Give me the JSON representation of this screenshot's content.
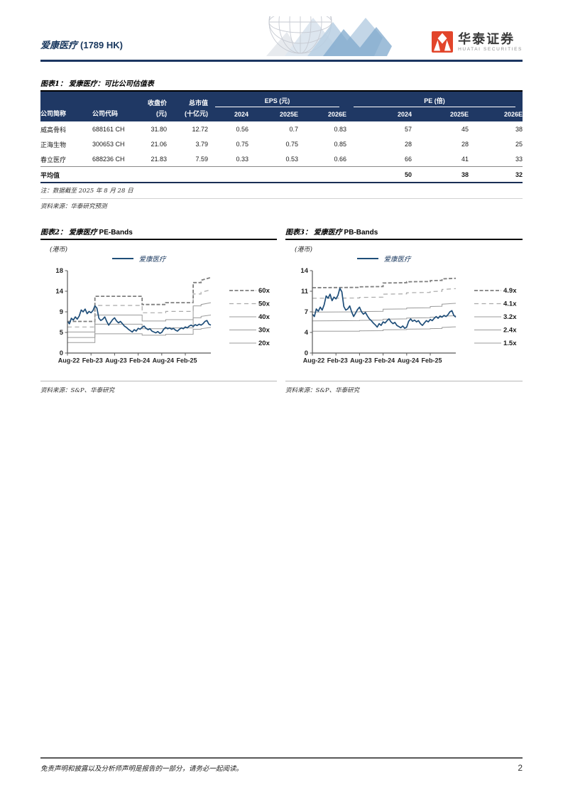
{
  "palette": {
    "navy_rule": "#1B3561",
    "table_header_bg": "#1F3864",
    "price_line": "#1F4E79",
    "brand_red": "#E2452B",
    "band_dash_dark": "#7f7f7f",
    "band_dash_light": "#a9a9a9",
    "band_solid": "#9b9b9b"
  },
  "header": {
    "title_cn": "爱康医疗",
    "title_code": "(1789 HK)",
    "brand_cn": "华泰证券",
    "brand_en": "HUATAI SECURITIES",
    "deco_icon": "globe-with-ribbons"
  },
  "figure1": {
    "fig_label": "图表1：",
    "title": "爱康医疗：可比公司估值表",
    "table": {
      "col1": "公司简称",
      "col2": "公司代码",
      "price_label": "收盘价",
      "price_unit": "(元)",
      "mcap_label": "总市值",
      "mcap_unit": "(十亿元)",
      "eps_group": "EPS (元)",
      "pe_group": "PE (倍)",
      "years": [
        "2024",
        "2025E",
        "2026E"
      ],
      "rows": [
        {
          "name": "威高骨科",
          "code": "688161 CH",
          "price": "31.80",
          "mcap": "12.72",
          "eps": [
            "0.56",
            "0.7",
            "0.83"
          ],
          "pe": [
            "57",
            "45",
            "38"
          ]
        },
        {
          "name": "正海生物",
          "code": "300653 CH",
          "price": "21.06",
          "mcap": "3.79",
          "eps": [
            "0.75",
            "0.75",
            "0.85"
          ],
          "pe": [
            "28",
            "28",
            "25"
          ]
        },
        {
          "name": "春立医疗",
          "code": "688236 CH",
          "price": "21.83",
          "mcap": "7.59",
          "eps": [
            "0.33",
            "0.53",
            "0.66"
          ],
          "pe": [
            "66",
            "41",
            "33"
          ]
        }
      ],
      "avg": {
        "label": "平均值",
        "pe": [
          "50",
          "38",
          "32"
        ]
      }
    },
    "note": "注：数据截至 2025 年 8 月 28 日",
    "source": "资料来源：华泰研究预测"
  },
  "chart_data": [
    {
      "id": "pe-bands",
      "type": "line",
      "fig_label": "图表2：",
      "title_cn": "爱康医疗",
      "title_en": "PE-Bands",
      "unit": "(港币)",
      "series_name": "爱康医疗",
      "source": "资料来源：S&P、华泰研究",
      "legend_position": "right",
      "grid": false,
      "xlim": [
        0,
        36.5
      ],
      "ylim": [
        0,
        18
      ],
      "yticks": [
        {
          "v": 0,
          "label": "0"
        },
        {
          "v": 4.5,
          "label": "5"
        },
        {
          "v": 9,
          "label": "9"
        },
        {
          "v": 13.5,
          "label": "14"
        },
        {
          "v": 18,
          "label": "18"
        }
      ],
      "xticks": [
        {
          "v": 0,
          "label": "Aug-22"
        },
        {
          "v": 6,
          "label": "Feb-23"
        },
        {
          "v": 12,
          "label": "Aug-23"
        },
        {
          "v": 18,
          "label": "Feb-24"
        },
        {
          "v": 24,
          "label": "Aug-24"
        },
        {
          "v": 30,
          "label": "Feb-25"
        }
      ],
      "bands": [
        {
          "label": "60x",
          "style": "dash-bold",
          "points": [
            [
              0,
              6.9
            ],
            [
              7,
              6.9
            ],
            [
              7,
              12.4
            ],
            [
              19,
              12.4
            ],
            [
              19,
              10.6
            ],
            [
              25,
              10.6
            ],
            [
              25,
              11.0
            ],
            [
              32,
              11.0
            ],
            [
              32,
              15.4
            ],
            [
              34,
              15.4
            ],
            [
              34,
              15.9
            ],
            [
              36.5,
              16.5
            ]
          ]
        },
        {
          "label": "50x",
          "style": "dash-light",
          "points": [
            [
              0,
              5.7
            ],
            [
              7,
              5.7
            ],
            [
              7,
              10.4
            ],
            [
              19,
              10.4
            ],
            [
              19,
              8.8
            ],
            [
              25,
              8.8
            ],
            [
              25,
              9.1
            ],
            [
              32,
              9.1
            ],
            [
              32,
              12.9
            ],
            [
              34,
              12.9
            ],
            [
              34,
              13.3
            ],
            [
              36.5,
              13.8
            ]
          ]
        },
        {
          "label": "40x",
          "style": "solid",
          "points": [
            [
              0,
              4.6
            ],
            [
              7,
              4.6
            ],
            [
              7,
              8.3
            ],
            [
              19,
              8.3
            ],
            [
              19,
              7.0
            ],
            [
              25,
              7.0
            ],
            [
              25,
              7.3
            ],
            [
              32,
              7.3
            ],
            [
              32,
              10.3
            ],
            [
              34,
              10.3
            ],
            [
              34,
              10.6
            ],
            [
              36.5,
              11.0
            ]
          ]
        },
        {
          "label": "30x",
          "style": "solid",
          "points": [
            [
              0,
              3.4
            ],
            [
              7,
              3.4
            ],
            [
              7,
              6.3
            ],
            [
              19,
              6.3
            ],
            [
              19,
              5.3
            ],
            [
              25,
              5.3
            ],
            [
              25,
              5.5
            ],
            [
              32,
              5.5
            ],
            [
              32,
              7.7
            ],
            [
              34,
              7.7
            ],
            [
              34,
              8.0
            ],
            [
              36.5,
              8.3
            ]
          ]
        },
        {
          "label": "20x",
          "style": "solid",
          "points": [
            [
              0,
              2.3
            ],
            [
              7,
              2.3
            ],
            [
              7,
              4.2
            ],
            [
              19,
              4.2
            ],
            [
              19,
              3.9
            ],
            [
              25,
              3.9
            ],
            [
              25,
              4.1
            ],
            [
              32,
              4.1
            ],
            [
              32,
              5.2
            ],
            [
              34,
              5.2
            ],
            [
              34,
              5.3
            ],
            [
              36.5,
              5.6
            ]
          ]
        }
      ],
      "price": {
        "x0": 0,
        "x_step": 0.5,
        "values": [
          6.9,
          6.4,
          7.6,
          7.2,
          7.9,
          7.4,
          8.1,
          9.4,
          9.0,
          9.6,
          8.6,
          9.1,
          8.8,
          9.3,
          10.3,
          9.8,
          7.6,
          7.1,
          7.4,
          7.9,
          6.9,
          6.1,
          6.7,
          7.3,
          7.7,
          7.0,
          6.6,
          6.9,
          6.4,
          5.9,
          5.6,
          5.2,
          4.9,
          4.6,
          5.1,
          4.8,
          5.4,
          5.2,
          5.6,
          5.9,
          5.4,
          5.1,
          5.3,
          4.8,
          4.6,
          4.4,
          4.7,
          4.3,
          4.5,
          5.2,
          5.6,
          5.3,
          5.5,
          5.2,
          5.4,
          5.0,
          4.8,
          5.2,
          5.5,
          5.3,
          5.7,
          5.5,
          5.9,
          6.1,
          5.8,
          6.2,
          6.0,
          6.3,
          6.1,
          6.4,
          6.9,
          7.1,
          6.3,
          6.1
        ]
      }
    },
    {
      "id": "pb-bands",
      "type": "line",
      "fig_label": "图表3：",
      "title_cn": "爱康医疗",
      "title_en": "PB-Bands",
      "unit": "(港币)",
      "series_name": "爱康医疗",
      "source": "资料来源：S&P、华泰研究",
      "legend_position": "right",
      "grid": false,
      "xlim": [
        0,
        36.5
      ],
      "ylim": [
        0,
        14
      ],
      "yticks": [
        {
          "v": 0,
          "label": "0"
        },
        {
          "v": 3.5,
          "label": "4"
        },
        {
          "v": 7,
          "label": "7"
        },
        {
          "v": 10.5,
          "label": "11"
        },
        {
          "v": 14,
          "label": "14"
        }
      ],
      "xticks": [
        {
          "v": 0,
          "label": "Aug-22"
        },
        {
          "v": 6,
          "label": "Feb-23"
        },
        {
          "v": 12,
          "label": "Aug-23"
        },
        {
          "v": 18,
          "label": "Feb-24"
        },
        {
          "v": 24,
          "label": "Aug-24"
        },
        {
          "v": 30,
          "label": "Feb-25"
        }
      ],
      "bands": [
        {
          "label": "4.9x",
          "style": "dash-bold",
          "points": [
            [
              0,
              11.1
            ],
            [
              12,
              11.15
            ],
            [
              12,
              11.25
            ],
            [
              18,
              11.3
            ],
            [
              18,
              11.9
            ],
            [
              24,
              11.95
            ],
            [
              24,
              12.1
            ],
            [
              30,
              12.15
            ],
            [
              30,
              12.3
            ],
            [
              33,
              12.35
            ],
            [
              33,
              12.6
            ],
            [
              36.5,
              12.7
            ]
          ]
        },
        {
          "label": "4.1x",
          "style": "dash-light",
          "points": [
            [
              0,
              9.3
            ],
            [
              12,
              9.35
            ],
            [
              12,
              9.45
            ],
            [
              18,
              9.5
            ],
            [
              18,
              10.0
            ],
            [
              24,
              10.05
            ],
            [
              24,
              10.25
            ],
            [
              30,
              10.3
            ],
            [
              30,
              10.45
            ],
            [
              33,
              10.5
            ],
            [
              33,
              10.8
            ],
            [
              36.5,
              10.95
            ]
          ]
        },
        {
          "label": "3.2x",
          "style": "solid",
          "points": [
            [
              0,
              6.95
            ],
            [
              12,
              7.0
            ],
            [
              12,
              7.05
            ],
            [
              18,
              7.1
            ],
            [
              18,
              7.45
            ],
            [
              24,
              7.5
            ],
            [
              24,
              7.65
            ],
            [
              30,
              7.7
            ],
            [
              30,
              7.9
            ],
            [
              33,
              7.95
            ],
            [
              33,
              8.3
            ],
            [
              36.5,
              8.45
            ]
          ]
        },
        {
          "label": "2.4x",
          "style": "solid",
          "points": [
            [
              0,
              5.45
            ],
            [
              12,
              5.5
            ],
            [
              12,
              5.55
            ],
            [
              18,
              5.6
            ],
            [
              18,
              5.75
            ],
            [
              24,
              5.8
            ],
            [
              24,
              5.95
            ],
            [
              30,
              6.0
            ],
            [
              30,
              6.1
            ],
            [
              33,
              6.1
            ],
            [
              33,
              6.25
            ],
            [
              36.5,
              6.35
            ]
          ]
        },
        {
          "label": "1.5x",
          "style": "solid",
          "points": [
            [
              0,
              3.7
            ],
            [
              12,
              3.72
            ],
            [
              12,
              3.78
            ],
            [
              18,
              3.8
            ],
            [
              18,
              3.95
            ],
            [
              24,
              3.98
            ],
            [
              24,
              4.05
            ],
            [
              30,
              4.1
            ],
            [
              30,
              4.15
            ],
            [
              33,
              4.18
            ],
            [
              33,
              4.35
            ],
            [
              36.5,
              4.45
            ]
          ]
        }
      ],
      "price": {
        "x0": 0,
        "x_step": 0.5,
        "values": [
          6.6,
          6.2,
          7.5,
          7.1,
          7.8,
          7.3,
          8.2,
          9.7,
          9.3,
          10.0,
          8.9,
          9.5,
          9.2,
          9.8,
          11.0,
          10.4,
          7.9,
          7.3,
          7.5,
          8.0,
          7.0,
          6.2,
          6.8,
          7.4,
          7.8,
          7.0,
          6.6,
          6.9,
          6.3,
          5.8,
          5.5,
          5.1,
          4.8,
          4.4,
          5.0,
          4.7,
          5.3,
          5.1,
          5.5,
          5.8,
          5.3,
          5.0,
          5.2,
          4.7,
          4.5,
          4.3,
          4.6,
          4.2,
          4.4,
          5.4,
          5.8,
          5.4,
          5.6,
          5.3,
          5.5,
          5.0,
          4.7,
          5.1,
          5.5,
          5.3,
          5.7,
          5.5,
          5.9,
          6.2,
          5.9,
          6.3,
          6.1,
          6.4,
          6.2,
          6.5,
          7.0,
          7.2,
          6.4,
          6.1
        ]
      }
    }
  ],
  "footer": {
    "disclaimer": "免责声明和披露以及分析师声明是报告的一部分，请务必一起阅读。",
    "page_number": "2"
  }
}
